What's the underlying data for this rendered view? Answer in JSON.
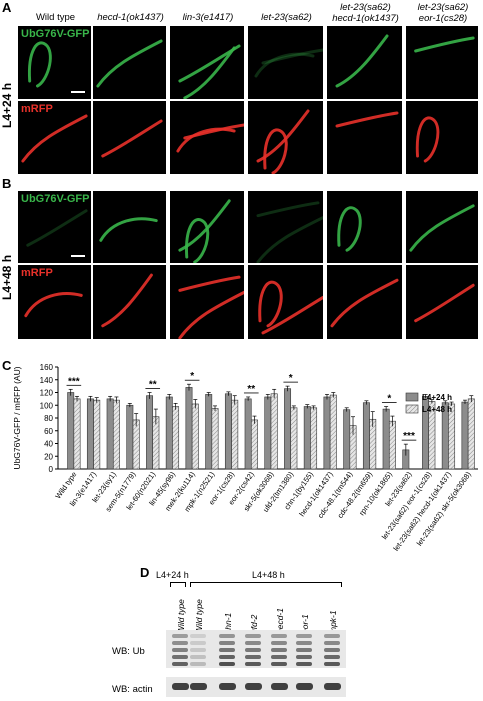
{
  "panels": {
    "A": "A",
    "B": "B",
    "C": "C",
    "D": "D"
  },
  "columns": [
    {
      "lines": [
        "Wild type"
      ],
      "italic": false
    },
    {
      "lines": [
        "hecd-1(ok1437)"
      ],
      "italic": true
    },
    {
      "lines": [
        "lin-3(e1417)"
      ],
      "italic": true
    },
    {
      "lines": [
        "let-23(sa62)"
      ],
      "italic": true
    },
    {
      "lines": [
        "let-23(sa62)",
        "hecd-1(ok1437)"
      ],
      "italic": true
    },
    {
      "lines": [
        "let-23(sa62)",
        "eor-1(cs28)"
      ],
      "italic": true
    }
  ],
  "rowA": {
    "side": "L4+24 h",
    "gfp": "UbG76V-GFP",
    "rfp": "mRFP"
  },
  "rowB": {
    "side": "L4+48 h",
    "gfp": "UbG76V-GFP",
    "rfp": "mRFP"
  },
  "colors": {
    "gfp": "#39b54a",
    "rfp": "#e8312a",
    "bar24": "#8c8c8c",
    "bar48": "#d9d9d9"
  },
  "chart_data": {
    "type": "bar",
    "ylabel": "UbG76V-GFP / mRFP (AU)",
    "ylim": [
      0,
      160
    ],
    "yticks": [
      0,
      20,
      40,
      60,
      80,
      100,
      120,
      140,
      160
    ],
    "legend": [
      "L4+24 h",
      "L4+48 h"
    ],
    "legend_position": "top-right",
    "categories": [
      "Wild type",
      "lin-3(e1417)",
      "let-23(sy1)",
      "sem-5(n1779)",
      "let-60(n2021)",
      "lin-45(sy96)",
      "mek-2(ku114)",
      "mpk-1(n2521)",
      "eor-1(cs28)",
      "eor-2(cs42)",
      "skr-5(ok3068)",
      "ufd-2(tm1380)",
      "chn-1(by155)",
      "hecd-1(ok1437)",
      "cdc-48.1(tm544)",
      "cdc-48.2(tm659)",
      "rpn-10(ok1865)",
      "let-23(sa62)",
      "let-23(sa62) eor-1(cs28)",
      "let-23(sa62) hecd-1(ok1437)",
      "let-23(sa62) skr-5(ok3068)"
    ],
    "series": [
      {
        "name": "L4+24 h",
        "values": [
          120,
          110,
          110,
          100,
          115,
          113,
          128,
          117,
          118,
          110,
          113,
          126,
          98,
          113,
          93,
          104,
          94,
          30,
          114,
          104,
          105
        ]
      },
      {
        "name": "L4+48 h",
        "values": [
          110,
          108,
          108,
          77,
          82,
          98,
          102,
          95,
          108,
          77,
          118,
          96,
          96,
          116,
          68,
          78,
          75,
          0,
          106,
          102,
          110
        ]
      }
    ],
    "errors": [
      [
        5,
        4,
        4,
        3,
        5,
        4,
        5,
        3,
        3,
        3,
        4,
        4,
        3,
        4,
        3,
        3,
        4,
        9,
        3,
        3,
        3
      ],
      [
        4,
        4,
        5,
        10,
        12,
        5,
        7,
        4,
        7,
        6,
        7,
        3,
        3,
        4,
        14,
        12,
        8,
        0,
        3,
        3,
        5
      ]
    ],
    "significance": [
      {
        "category": "Wild type",
        "label": "***"
      },
      {
        "category": "let-60(n2021)",
        "label": "**"
      },
      {
        "category": "mek-2(ku114)",
        "label": "*"
      },
      {
        "category": "eor-2(cs42)",
        "label": "**"
      },
      {
        "category": "ufd-2(tm1380)",
        "label": "*"
      },
      {
        "category": "rpn-10(ok1865)",
        "label": "*"
      },
      {
        "category": "let-23(sa62)",
        "label": "***"
      }
    ]
  },
  "blot": {
    "group24": "L4+24 h",
    "group48": "L4+48 h",
    "lanes": [
      "Wild type",
      "Wild type",
      "chn-1",
      "ufd-2",
      "hecd-1",
      "eor-1",
      "mpk-1"
    ],
    "ub_label": "WB: Ub",
    "actin_label": "WB: actin"
  }
}
